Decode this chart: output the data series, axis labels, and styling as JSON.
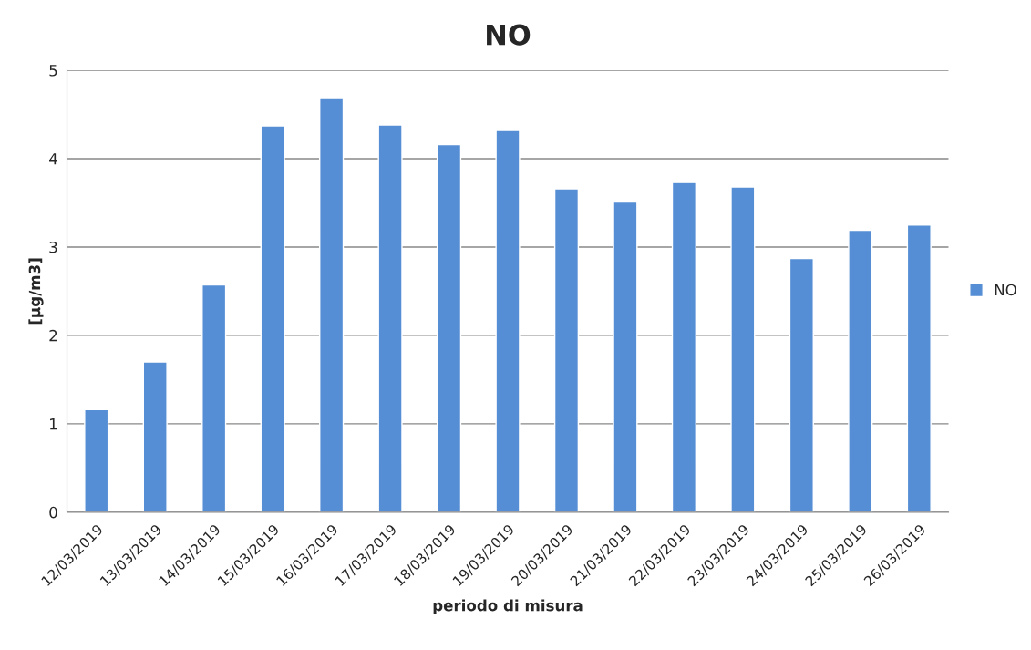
{
  "chart_data": {
    "type": "bar",
    "title": "NO",
    "xlabel": "periodo di misura",
    "ylabel": "[µg/m3]",
    "categories": [
      "12/03/2019",
      "13/03/2019",
      "14/03/2019",
      "15/03/2019",
      "16/03/2019",
      "17/03/2019",
      "18/03/2019",
      "19/03/2019",
      "20/03/2019",
      "21/03/2019",
      "22/03/2019",
      "23/03/2019",
      "24/03/2019",
      "25/03/2019",
      "26/03/2019"
    ],
    "series": [
      {
        "name": "NO",
        "color": "#558ed5",
        "values": [
          1.16,
          1.7,
          2.57,
          4.37,
          4.68,
          4.38,
          4.16,
          4.32,
          3.66,
          3.51,
          3.73,
          3.68,
          2.87,
          3.19,
          3.25
        ]
      }
    ],
    "ylim": [
      0,
      5
    ],
    "yticks": [
      0,
      1,
      2,
      3,
      4,
      5
    ],
    "grid": "y",
    "legend": "right"
  }
}
